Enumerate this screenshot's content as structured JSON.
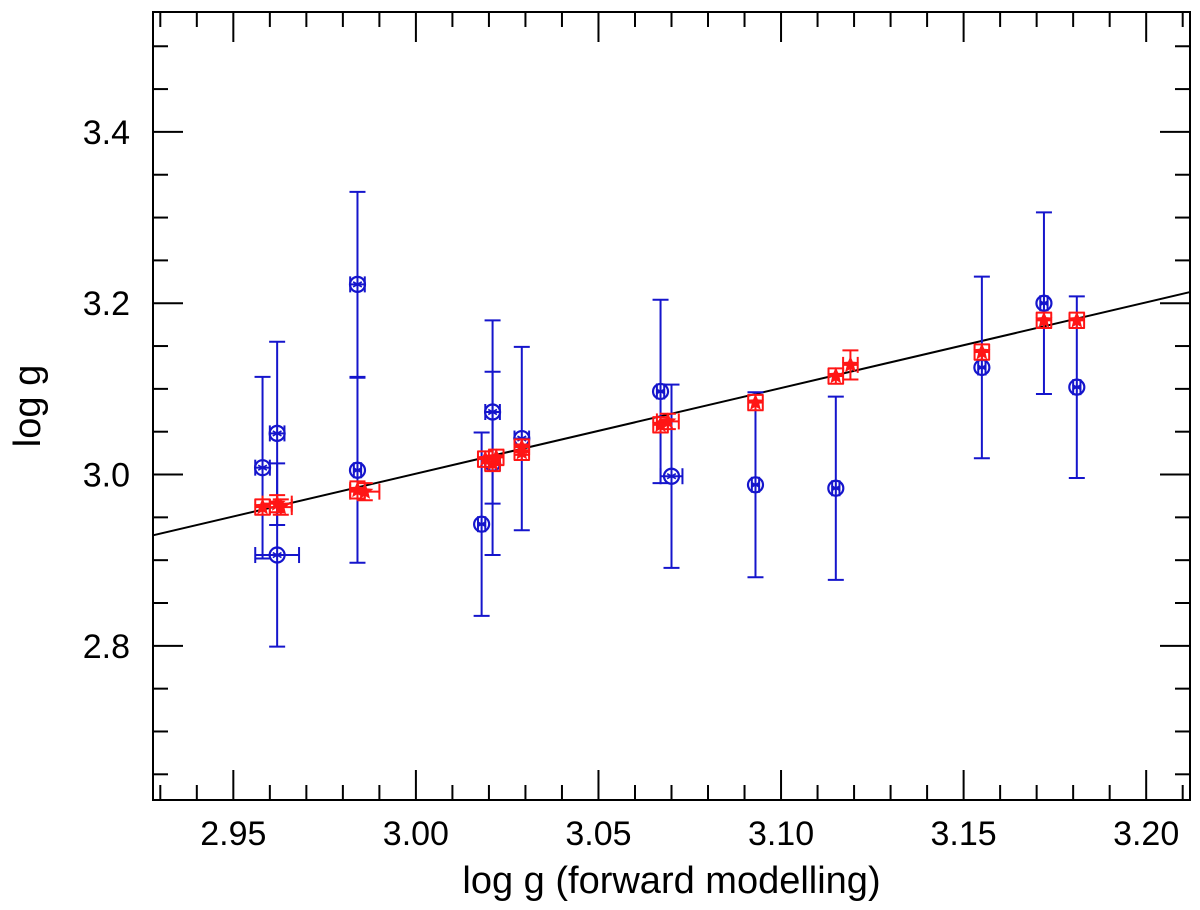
{
  "chart_data": {
    "type": "scatter",
    "title": "",
    "xlabel": "log g (forward modelling)",
    "ylabel": "log g",
    "xlim": [
      2.928,
      3.212
    ],
    "ylim": [
      2.62,
      3.54
    ],
    "x_ticks": [
      "2.95",
      "3.00",
      "3.05",
      "3.10",
      "3.15",
      "3.20"
    ],
    "y_ticks": [
      "2.8",
      "3.0",
      "3.2",
      "3.4"
    ],
    "x_minor_step": 0.01,
    "y_minor_step": 0.05,
    "grid": false,
    "legend": "none",
    "fit_line": {
      "x": [
        2.928,
        3.212
      ],
      "y": [
        2.929,
        3.213
      ],
      "color": "#000000"
    },
    "series": [
      {
        "marker": "circle-star",
        "color": "#1515cc",
        "points": [
          {
            "x": 2.958,
            "y": 3.008,
            "xerr": 0.002,
            "yerr": 0.106
          },
          {
            "x": 2.962,
            "y": 3.048,
            "xerr": 0.002,
            "yerr": 0.107
          },
          {
            "x": 2.962,
            "y": 2.906,
            "xerr": 0.006,
            "yerr": 0.107
          },
          {
            "x": 2.984,
            "y": 3.222,
            "xerr": 0.002,
            "yerr": 0.108
          },
          {
            "x": 2.984,
            "y": 3.005,
            "xerr": 0.001,
            "yerr": 0.108
          },
          {
            "x": 3.018,
            "y": 2.942,
            "xerr": 0.001,
            "yerr": 0.107
          },
          {
            "x": 3.021,
            "y": 3.073,
            "xerr": 0.002,
            "yerr": 0.107
          },
          {
            "x": 3.021,
            "y": 3.013,
            "xerr": 0.002,
            "yerr": 0.107
          },
          {
            "x": 3.029,
            "y": 3.042,
            "xerr": 0.002,
            "yerr": 0.107
          },
          {
            "x": 3.067,
            "y": 3.097,
            "xerr": 0.001,
            "yerr": 0.107
          },
          {
            "x": 3.07,
            "y": 2.998,
            "xerr": 0.003,
            "yerr": 0.107
          },
          {
            "x": 3.093,
            "y": 2.988,
            "xerr": 0.001,
            "yerr": 0.108
          },
          {
            "x": 3.115,
            "y": 2.984,
            "xerr": 0.001,
            "yerr": 0.107
          },
          {
            "x": 3.155,
            "y": 3.125,
            "xerr": 0.001,
            "yerr": 0.106
          },
          {
            "x": 3.172,
            "y": 3.2,
            "xerr": 0.001,
            "yerr": 0.106
          },
          {
            "x": 3.181,
            "y": 3.102,
            "xerr": 0.001,
            "yerr": 0.106
          }
        ]
      },
      {
        "marker": "filled-star",
        "color": "#ff1515",
        "points": [
          {
            "x": 2.958,
            "y": 2.962,
            "xerr": 0.002,
            "yerr": 0.009
          },
          {
            "x": 2.962,
            "y": 2.966,
            "xerr": 0.004,
            "yerr": 0.01
          },
          {
            "x": 2.963,
            "y": 2.962,
            "xerr": 0.003,
            "yerr": 0.009
          },
          {
            "x": 2.984,
            "y": 2.982,
            "xerr": 0.002,
            "yerr": 0.01
          },
          {
            "x": 2.986,
            "y": 2.98,
            "xerr": 0.004,
            "yerr": 0.01
          },
          {
            "x": 3.019,
            "y": 3.018,
            "xerr": 0.002,
            "yerr": 0.009
          },
          {
            "x": 3.021,
            "y": 3.013,
            "xerr": 0.002,
            "yerr": 0.009
          },
          {
            "x": 3.022,
            "y": 3.02,
            "xerr": 0.002,
            "yerr": 0.009
          },
          {
            "x": 3.029,
            "y": 3.032,
            "xerr": 0.002,
            "yerr": 0.009
          },
          {
            "x": 3.029,
            "y": 3.026,
            "xerr": 0.002,
            "yerr": 0.009
          },
          {
            "x": 3.067,
            "y": 3.058,
            "xerr": 0.002,
            "yerr": 0.009
          },
          {
            "x": 3.069,
            "y": 3.062,
            "xerr": 0.003,
            "yerr": 0.009
          },
          {
            "x": 3.093,
            "y": 3.084,
            "xerr": 0.002,
            "yerr": 0.009
          },
          {
            "x": 3.115,
            "y": 3.115,
            "xerr": 0.002,
            "yerr": 0.009
          },
          {
            "x": 3.119,
            "y": 3.128,
            "xerr": 0.002,
            "yerr": 0.017
          },
          {
            "x": 3.155,
            "y": 3.143,
            "xerr": 0.002,
            "yerr": 0.009
          },
          {
            "x": 3.172,
            "y": 3.18,
            "xerr": 0.002,
            "yerr": 0.009
          },
          {
            "x": 3.181,
            "y": 3.18,
            "xerr": 0.002,
            "yerr": 0.009
          }
        ]
      }
    ]
  }
}
